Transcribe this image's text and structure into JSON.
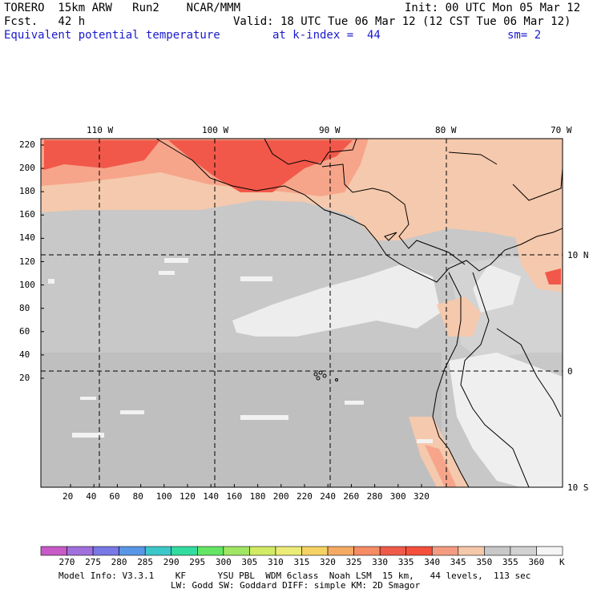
{
  "header": {
    "model": "TORERO  15km ARW   Run2    NCAR/MMM",
    "init": "Init: 00 UTC Mon 05 Mar 12",
    "fcst": "Fcst.   42 h",
    "valid": "Valid: 18 UTC Tue 06 Mar 12 (12 CST Tue 06 Mar 12)",
    "field": "Equivalent potential temperature",
    "level": "at k-index =  44",
    "sm": "sm= 2"
  },
  "map": {
    "top_lon_labels": [
      "110 W",
      "100 W",
      "90 W",
      "80 W",
      "70 W"
    ],
    "right_lat_labels": [
      "10 N",
      "0",
      "10 S"
    ],
    "y_ticks": [
      "220",
      "200",
      "180",
      "160",
      "140",
      "120",
      "100",
      "80",
      "60",
      "40",
      "20"
    ],
    "x_ticks": [
      "20",
      "40",
      "60",
      "80",
      "100",
      "120",
      "140",
      "160",
      "180",
      "200",
      "220",
      "240",
      "260",
      "280",
      "300",
      "320"
    ],
    "colors": {
      "ocean_cool": "#c8c8c8",
      "ocean_warmer": "#bdbdbd",
      "white_patch": "#efefef",
      "tan": "#f5c9ad",
      "salmon": "#f6a58a",
      "red": "#f1584a",
      "border": "#000000",
      "grid": "#000000"
    }
  },
  "colorbar": {
    "unit": "K",
    "labels": [
      "270",
      "275",
      "280",
      "285",
      "290",
      "295",
      "300",
      "305",
      "310",
      "315",
      "320",
      "325",
      "330",
      "335",
      "340",
      "345",
      "350",
      "355",
      "360"
    ],
    "colors": [
      "#c85ac8",
      "#a070dc",
      "#7878e6",
      "#5a96e6",
      "#3cc8c8",
      "#32dca0",
      "#64e664",
      "#a0e664",
      "#d2eb64",
      "#ebeb78",
      "#f5d264",
      "#f5aa64",
      "#f58c64",
      "#f05a4b",
      "#f5503c",
      "#f59b82",
      "#f5c8aa",
      "#c8c8c8",
      "#d2d2d2",
      "#f5f5f5"
    ]
  },
  "footer": {
    "line1": "Model Info: V3.3.1    KF      YSU PBL  WDM 6class  Noah LSM  15 km,   44 levels,  113 sec",
    "line2": "LW: Godd SW: Goddard DIFF: simple KM: 2D Smagor"
  }
}
